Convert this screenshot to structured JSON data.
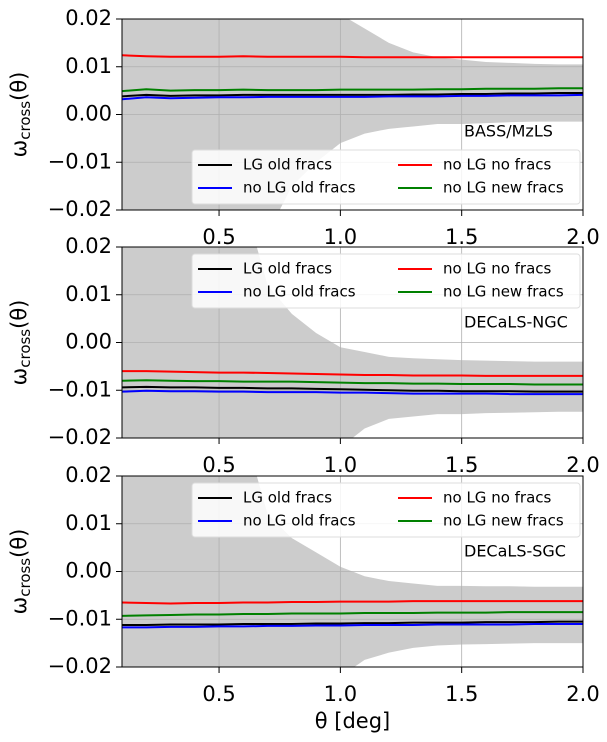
{
  "chart_data": [
    {
      "type": "line",
      "annotation": "BASS/MzLS",
      "legend": "lower right",
      "grid": true,
      "y_label": {
        "symbol": "ω",
        "subscript": "cross",
        "argument": "(θ)"
      },
      "xlim": [
        0.1,
        2.0
      ],
      "ylim": [
        -0.02,
        0.02
      ],
      "xticks": [
        0.5,
        {
          "value": 1,
          "label": "1.0"
        },
        1.5,
        {
          "value": 2,
          "label": "2.0"
        }
      ],
      "yticks": [
        {
          "value": -0.02,
          "label": "−0.02"
        },
        {
          "value": -0.01,
          "label": "−0.01"
        },
        {
          "value": 0,
          "label": "0.00"
        },
        0.01,
        0.02
      ],
      "x": [
        0.1,
        0.2,
        0.3,
        0.4,
        0.5,
        0.6,
        0.7,
        0.8,
        0.9,
        1.0,
        1.1,
        1.2,
        1.3,
        1.4,
        1.5,
        1.6,
        1.7,
        1.8,
        1.9,
        2.0
      ],
      "band": {
        "color": "#cccccc",
        "upper": [
          0.04,
          0.04,
          0.04,
          0.04,
          0.04,
          0.04,
          0.04,
          0.04,
          0.04,
          0.021,
          0.018,
          0.015,
          0.013,
          0.012,
          0.0115,
          0.011,
          0.0108,
          0.0106,
          0.0105,
          0.0105
        ],
        "lower": [
          -0.04,
          -0.04,
          -0.04,
          -0.04,
          -0.04,
          -0.04,
          -0.025,
          -0.015,
          -0.01,
          -0.006,
          -0.004,
          -0.003,
          -0.0025,
          -0.002,
          -0.002,
          -0.0018,
          -0.0016,
          -0.0015,
          -0.0015,
          -0.0015
        ]
      },
      "series": [
        {
          "name": "LG old fracs",
          "color": "#000000",
          "values": [
            0.0038,
            0.0041,
            0.0039,
            0.004,
            0.004,
            0.0041,
            0.0041,
            0.0041,
            0.0041,
            0.0041,
            0.0041,
            0.0041,
            0.0042,
            0.0042,
            0.0043,
            0.0043,
            0.0044,
            0.0044,
            0.0045,
            0.0045
          ]
        },
        {
          "name": "no LG old fracs",
          "color": "#0000ff",
          "values": [
            0.0032,
            0.0036,
            0.0034,
            0.0035,
            0.0036,
            0.0036,
            0.0037,
            0.0037,
            0.0037,
            0.0037,
            0.0037,
            0.0038,
            0.0038,
            0.0038,
            0.0039,
            0.0039,
            0.004,
            0.004,
            0.004,
            0.0041
          ]
        },
        {
          "name": "no LG no fracs",
          "color": "#ff0000",
          "values": [
            0.0124,
            0.0122,
            0.0121,
            0.0121,
            0.0121,
            0.0122,
            0.0121,
            0.0121,
            0.0121,
            0.0121,
            0.012,
            0.012,
            0.012,
            0.012,
            0.012,
            0.012,
            0.012,
            0.012,
            0.012,
            0.012
          ]
        },
        {
          "name": "no LG new fracs",
          "color": "#008000",
          "values": [
            0.0049,
            0.0053,
            0.005,
            0.0051,
            0.0051,
            0.0052,
            0.0051,
            0.0051,
            0.0051,
            0.0052,
            0.0052,
            0.0052,
            0.0052,
            0.0053,
            0.0053,
            0.0054,
            0.0054,
            0.0054,
            0.0055,
            0.0055
          ]
        }
      ]
    },
    {
      "type": "line",
      "annotation": "DECaLS-NGC",
      "legend": "upper right",
      "grid": true,
      "y_label": {
        "symbol": "ω",
        "subscript": "cross",
        "argument": "(θ)"
      },
      "xlim": [
        0.1,
        2.0
      ],
      "ylim": [
        -0.02,
        0.02
      ],
      "xticks": [
        0.5,
        {
          "value": 1,
          "label": "1.0"
        },
        1.5,
        {
          "value": 2,
          "label": "2.0"
        }
      ],
      "yticks": [
        {
          "value": -0.02,
          "label": "−0.02"
        },
        {
          "value": -0.01,
          "label": "−0.01"
        },
        {
          "value": 0,
          "label": "0.00"
        },
        0.01,
        0.02
      ],
      "x": [
        0.1,
        0.2,
        0.3,
        0.4,
        0.5,
        0.6,
        0.7,
        0.8,
        0.9,
        1.0,
        1.1,
        1.2,
        1.3,
        1.4,
        1.5,
        1.6,
        1.7,
        1.8,
        1.9,
        2.0
      ],
      "band": {
        "color": "#cccccc",
        "upper": [
          0.04,
          0.04,
          0.04,
          0.04,
          0.04,
          0.03,
          0.012,
          0.006,
          0.002,
          -0.001,
          -0.002,
          -0.003,
          -0.0033,
          -0.0035,
          -0.0037,
          -0.0038,
          -0.0039,
          -0.004,
          -0.004,
          -0.004
        ],
        "lower": [
          -0.04,
          -0.04,
          -0.04,
          -0.04,
          -0.04,
          -0.04,
          -0.04,
          -0.035,
          -0.028,
          -0.022,
          -0.018,
          -0.016,
          -0.0155,
          -0.015,
          -0.015,
          -0.0148,
          -0.0147,
          -0.0146,
          -0.0145,
          -0.0145
        ]
      },
      "series": [
        {
          "name": "LG old fracs",
          "color": "#000000",
          "values": [
            -0.0094,
            -0.0093,
            -0.0094,
            -0.0094,
            -0.0095,
            -0.0095,
            -0.0096,
            -0.0096,
            -0.0097,
            -0.0098,
            -0.0099,
            -0.01,
            -0.0101,
            -0.0101,
            -0.0102,
            -0.0102,
            -0.0102,
            -0.0103,
            -0.0103,
            -0.0103
          ]
        },
        {
          "name": "no LG old fracs",
          "color": "#0000ff",
          "values": [
            -0.0103,
            -0.0101,
            -0.0102,
            -0.0102,
            -0.0103,
            -0.0103,
            -0.0104,
            -0.0104,
            -0.0104,
            -0.0105,
            -0.0105,
            -0.0106,
            -0.0107,
            -0.0107,
            -0.0107,
            -0.0107,
            -0.0108,
            -0.0108,
            -0.0108,
            -0.0108
          ]
        },
        {
          "name": "no LG no fracs",
          "color": "#ff0000",
          "values": [
            -0.006,
            -0.006,
            -0.0061,
            -0.0062,
            -0.0063,
            -0.0063,
            -0.0064,
            -0.0065,
            -0.0066,
            -0.0067,
            -0.0068,
            -0.0068,
            -0.0069,
            -0.0069,
            -0.0069,
            -0.007,
            -0.007,
            -0.007,
            -0.007,
            -0.007
          ]
        },
        {
          "name": "no LG new fracs",
          "color": "#008000",
          "values": [
            -0.008,
            -0.0079,
            -0.008,
            -0.0081,
            -0.0081,
            -0.0082,
            -0.0082,
            -0.0082,
            -0.0083,
            -0.0084,
            -0.0085,
            -0.0085,
            -0.0086,
            -0.0086,
            -0.0087,
            -0.0087,
            -0.0087,
            -0.0088,
            -0.0088,
            -0.0088
          ]
        }
      ]
    },
    {
      "type": "line",
      "annotation": "DECaLS-SGC",
      "legend": "upper right",
      "grid": true,
      "y_label": {
        "symbol": "ω",
        "subscript": "cross",
        "argument": "(θ)"
      },
      "x_label": "θ [deg]",
      "xlim": [
        0.1,
        2.0
      ],
      "ylim": [
        -0.02,
        0.02
      ],
      "xticks": [
        0.5,
        {
          "value": 1,
          "label": "1.0"
        },
        1.5,
        {
          "value": 2,
          "label": "2.0"
        }
      ],
      "yticks": [
        {
          "value": -0.02,
          "label": "−0.02"
        },
        {
          "value": -0.01,
          "label": "−0.01"
        },
        {
          "value": 0,
          "label": "0.00"
        },
        0.01,
        0.02
      ],
      "x": [
        0.1,
        0.2,
        0.3,
        0.4,
        0.5,
        0.6,
        0.7,
        0.8,
        0.9,
        1.0,
        1.1,
        1.2,
        1.3,
        1.4,
        1.5,
        1.6,
        1.7,
        1.8,
        1.9,
        2.0
      ],
      "band": {
        "color": "#cccccc",
        "upper": [
          0.04,
          0.04,
          0.04,
          0.04,
          0.04,
          0.03,
          0.012,
          0.007,
          0.004,
          0.001,
          -0.001,
          -0.002,
          -0.0025,
          -0.003,
          -0.003,
          -0.0031,
          -0.0031,
          -0.0032,
          -0.0032,
          -0.0032
        ],
        "lower": [
          -0.04,
          -0.04,
          -0.04,
          -0.04,
          -0.04,
          -0.04,
          -0.04,
          -0.035,
          -0.028,
          -0.022,
          -0.0185,
          -0.017,
          -0.016,
          -0.0155,
          -0.0153,
          -0.0152,
          -0.0151,
          -0.015,
          -0.015,
          -0.015
        ]
      },
      "series": [
        {
          "name": "LG old fracs",
          "color": "#000000",
          "values": [
            -0.0112,
            -0.0112,
            -0.0111,
            -0.0111,
            -0.0111,
            -0.011,
            -0.011,
            -0.011,
            -0.0109,
            -0.0109,
            -0.0108,
            -0.0108,
            -0.0107,
            -0.0107,
            -0.0107,
            -0.0106,
            -0.0106,
            -0.0106,
            -0.0105,
            -0.0105
          ]
        },
        {
          "name": "no LG old fracs",
          "color": "#0000ff",
          "values": [
            -0.0117,
            -0.0117,
            -0.0116,
            -0.0116,
            -0.0115,
            -0.0115,
            -0.0114,
            -0.0114,
            -0.0113,
            -0.0113,
            -0.0112,
            -0.0112,
            -0.0112,
            -0.0111,
            -0.0111,
            -0.0111,
            -0.0111,
            -0.011,
            -0.011,
            -0.011
          ]
        },
        {
          "name": "no LG no fracs",
          "color": "#ff0000",
          "values": [
            -0.0065,
            -0.0066,
            -0.0067,
            -0.0066,
            -0.0066,
            -0.0065,
            -0.0065,
            -0.0064,
            -0.0064,
            -0.0063,
            -0.0063,
            -0.0063,
            -0.0062,
            -0.0062,
            -0.0062,
            -0.0062,
            -0.0062,
            -0.0062,
            -0.0062,
            -0.0062
          ]
        },
        {
          "name": "no LG new fracs",
          "color": "#008000",
          "values": [
            -0.0093,
            -0.0092,
            -0.0091,
            -0.009,
            -0.009,
            -0.0089,
            -0.0089,
            -0.0088,
            -0.0088,
            -0.0088,
            -0.0087,
            -0.0087,
            -0.0087,
            -0.0086,
            -0.0086,
            -0.0086,
            -0.0085,
            -0.0085,
            -0.0085,
            -0.0085
          ]
        }
      ]
    }
  ]
}
